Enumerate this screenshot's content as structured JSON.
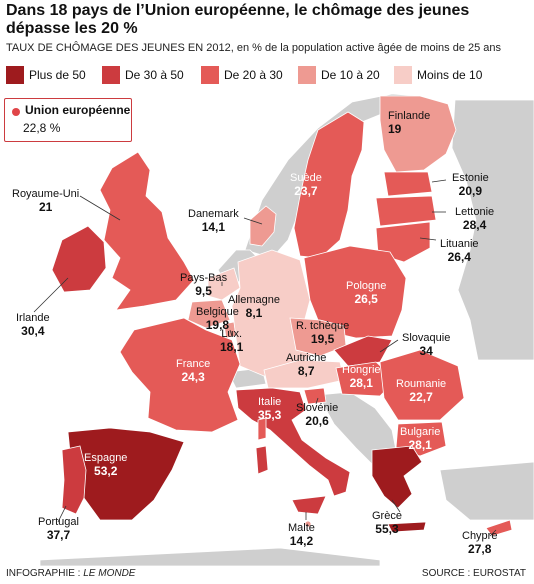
{
  "title": "Dans 18 pays de l’Union européenne, le chômage des jeunes dépasse les 20 %",
  "subtitle": "TAUX DE CHÔMAGE DES JEUNES EN 2012, en % de la population active âgée de moins de 25 ans",
  "colors": {
    "plus50": "#9e1b1e",
    "c30_50": "#cc3b3f",
    "c20_30": "#e45a57",
    "c10_20": "#ee9a92",
    "moins10": "#f7cdc7",
    "nonEU": "#cfcfcf",
    "sea": "#ffffff"
  },
  "legend": [
    {
      "label": "Plus de 50",
      "color": "#9e1b1e"
    },
    {
      "label": "De 30 à 50",
      "color": "#cc3b3f"
    },
    {
      "label": "De 20 à 30",
      "color": "#e45a57"
    },
    {
      "label": "De 10 à 20",
      "color": "#ee9a92"
    },
    {
      "label": "Moins de 10",
      "color": "#f7cdc7"
    }
  ],
  "eu": {
    "name": "Union européenne",
    "value": "22,8 %"
  },
  "countries": {
    "finlande": {
      "name": "Finlande",
      "value": "19"
    },
    "suede": {
      "name": "Suède",
      "value": "23,7"
    },
    "estonie": {
      "name": "Estonie",
      "value": "20,9"
    },
    "lettonie": {
      "name": "Lettonie",
      "value": "28,4"
    },
    "lituanie": {
      "name": "Lituanie",
      "value": "26,4"
    },
    "royaumeuni": {
      "name": "Royaume-Uni",
      "value": "21"
    },
    "danemark": {
      "name": "Danemark",
      "value": "14,1"
    },
    "irlande": {
      "name": "Irlande",
      "value": "30,4"
    },
    "paysbas": {
      "name": "Pays-Bas",
      "value": "9,5"
    },
    "allemagne": {
      "name": "Allemagne",
      "value": "8,1"
    },
    "pologne": {
      "name": "Pologne",
      "value": "26,5"
    },
    "belgique": {
      "name": "Belgique",
      "value": "19,8"
    },
    "lux": {
      "name": "Lux.",
      "value": "18,1"
    },
    "rtcheque": {
      "name": "R. tchèque",
      "value": "19,5"
    },
    "slovaquie": {
      "name": "Slovaquie",
      "value": "34"
    },
    "france": {
      "name": "France",
      "value": "24,3"
    },
    "autriche": {
      "name": "Autriche",
      "value": "8,7"
    },
    "hongrie": {
      "name": "Hongrie",
      "value": "28,1"
    },
    "roumanie": {
      "name": "Roumanie",
      "value": "22,7"
    },
    "italie": {
      "name": "Italie",
      "value": "35,3"
    },
    "slovenie": {
      "name": "Slovénie",
      "value": "20,6"
    },
    "bulgarie": {
      "name": "Bulgarie",
      "value": "28,1"
    },
    "espagne": {
      "name": "Espagne",
      "value": "53,2"
    },
    "portugal": {
      "name": "Portugal",
      "value": "37,7"
    },
    "malte": {
      "name": "Malte",
      "value": "14,2"
    },
    "grece": {
      "name": "Grèce",
      "value": "55,3"
    },
    "chypre": {
      "name": "Chypre",
      "value": "27,8"
    }
  },
  "footer": {
    "left_prefix": "INFOGRAPHIE : ",
    "left_source": "LE MONDE",
    "right": "SOURCE : EUROSTAT"
  }
}
